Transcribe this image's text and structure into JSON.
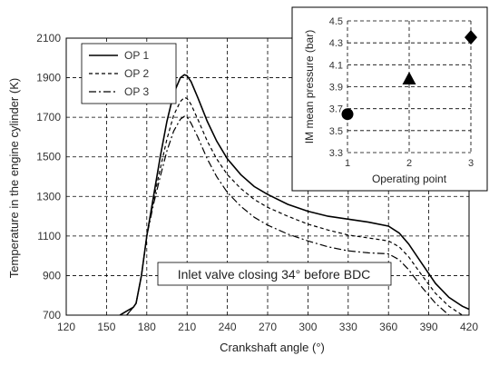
{
  "chart_data": [
    {
      "type": "line",
      "xlabel": "Crankshaft angle (°)",
      "ylabel": "Temperature in the engine cylinder (K)",
      "xlim": [
        120,
        420
      ],
      "ylim": [
        700,
        2100
      ],
      "xticks": [
        120,
        150,
        180,
        210,
        240,
        270,
        300,
        330,
        360,
        390,
        420
      ],
      "yticks": [
        700,
        900,
        1100,
        1300,
        1500,
        1700,
        1900,
        2100
      ],
      "grid": true,
      "legend_position": "top-left",
      "annotation": "Inlet valve closing 34° before BDC",
      "series": [
        {
          "name": "OP 1",
          "style": "solid",
          "x": [
            160,
            165,
            170,
            172,
            176,
            180,
            185,
            190,
            195,
            200,
            205,
            208,
            210,
            213,
            218,
            225,
            232,
            240,
            250,
            260,
            270,
            285,
            300,
            315,
            330,
            345,
            360,
            368,
            375,
            385,
            395,
            405,
            415,
            420
          ],
          "y": [
            700,
            720,
            740,
            760,
            900,
            1100,
            1300,
            1500,
            1680,
            1820,
            1900,
            1915,
            1910,
            1880,
            1800,
            1680,
            1580,
            1490,
            1410,
            1350,
            1310,
            1260,
            1225,
            1200,
            1185,
            1170,
            1150,
            1115,
            1060,
            960,
            860,
            790,
            745,
            730
          ]
        },
        {
          "name": "OP 2",
          "style": "dashed",
          "x": [
            165,
            170,
            172,
            176,
            180,
            185,
            190,
            195,
            200,
            205,
            208,
            210,
            213,
            218,
            225,
            232,
            240,
            250,
            260,
            270,
            285,
            300,
            315,
            330,
            345,
            360,
            368,
            375,
            385,
            395,
            405,
            415,
            420
          ],
          "y": [
            700,
            740,
            760,
            900,
            1100,
            1280,
            1440,
            1590,
            1710,
            1780,
            1800,
            1795,
            1765,
            1690,
            1580,
            1490,
            1410,
            1340,
            1285,
            1245,
            1200,
            1160,
            1130,
            1105,
            1090,
            1075,
            1045,
            995,
            900,
            810,
            745,
            700,
            690
          ]
        },
        {
          "name": "OP 3",
          "style": "dash-dot",
          "x": [
            165,
            170,
            172,
            176,
            180,
            185,
            190,
            195,
            200,
            205,
            208,
            210,
            213,
            218,
            225,
            232,
            240,
            250,
            260,
            270,
            285,
            300,
            315,
            330,
            345,
            360,
            368,
            375,
            385,
            395,
            405,
            412
          ],
          "y": [
            700,
            740,
            760,
            900,
            1100,
            1260,
            1400,
            1530,
            1630,
            1690,
            1705,
            1700,
            1670,
            1600,
            1490,
            1400,
            1320,
            1250,
            1195,
            1155,
            1110,
            1075,
            1045,
            1025,
            1015,
            1010,
            980,
            930,
            840,
            760,
            700,
            670
          ]
        }
      ]
    },
    {
      "type": "scatter",
      "xlabel": "Operating point",
      "ylabel": "IM mean pressure (bar)",
      "xlim": [
        1,
        3
      ],
      "ylim": [
        3.3,
        4.5
      ],
      "xticks": [
        1,
        2,
        3
      ],
      "yticks": [
        3.3,
        3.5,
        3.7,
        3.9,
        4.1,
        4.3,
        4.5
      ],
      "grid": true,
      "points": [
        {
          "x": 1,
          "y": 3.65,
          "marker": "circle"
        },
        {
          "x": 2,
          "y": 3.97,
          "marker": "triangle"
        },
        {
          "x": 3,
          "y": 4.35,
          "marker": "diamond"
        }
      ]
    }
  ]
}
